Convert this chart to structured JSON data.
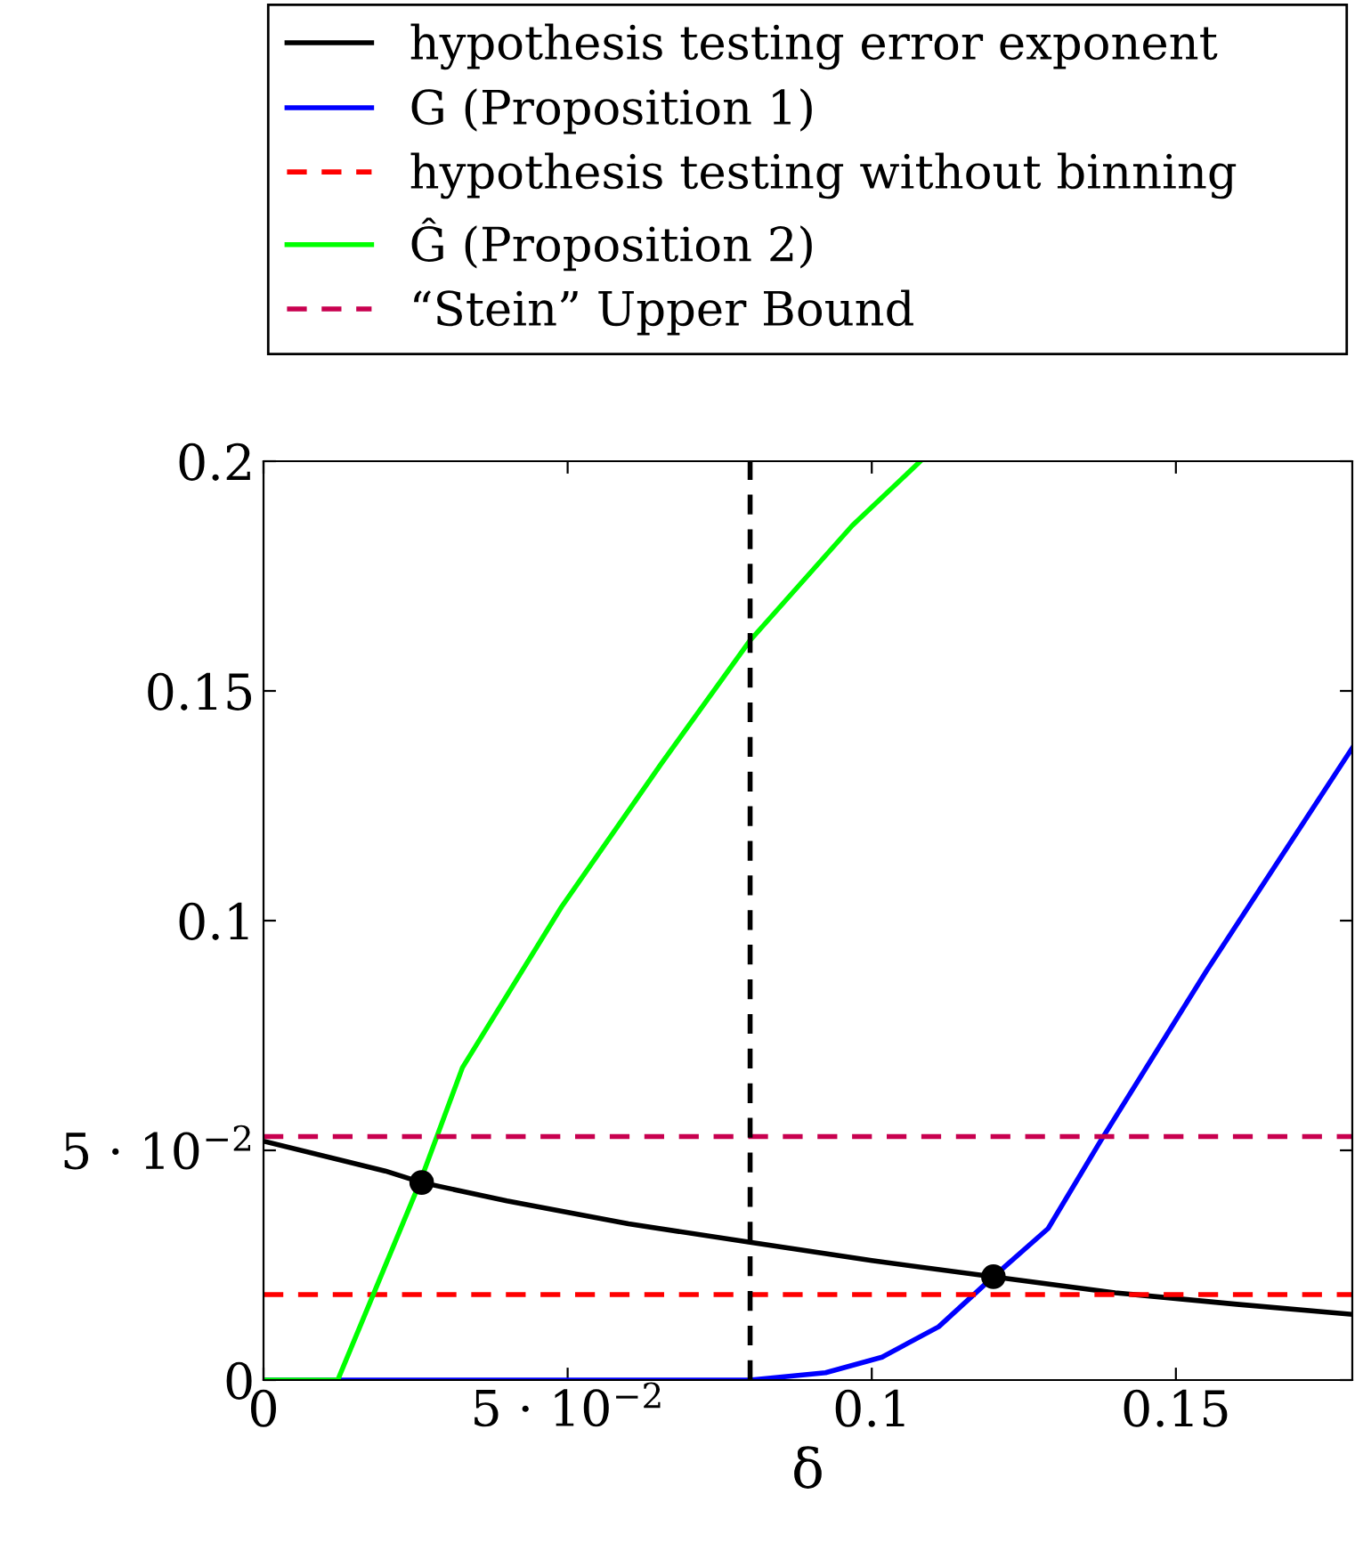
{
  "chart_data": {
    "type": "line",
    "xlabel": "δ",
    "xlim": [
      0,
      0.179
    ],
    "ylim": [
      0,
      0.2
    ],
    "xticks": [
      0,
      {
        "value": 0.05,
        "label": "5 · 10$^{−2}$"
      },
      0.1,
      0.15
    ],
    "yticks": [
      0,
      {
        "value": 0.05,
        "label": "5 · 10$^{−2}$"
      },
      0.1,
      0.15,
      0.2
    ],
    "grid": false,
    "legend": "top",
    "series": [
      {
        "name": "hypothesis testing error exponent",
        "color": "#000000",
        "line_style": "solid",
        "x": [
          0,
          0.02,
          0.026,
          0.04,
          0.06,
          0.08,
          0.1,
          0.12,
          0.14,
          0.16,
          0.179
        ],
        "values": [
          0.052,
          0.0455,
          0.043,
          0.039,
          0.034,
          0.03,
          0.026,
          0.0225,
          0.019,
          0.0165,
          0.0143
        ]
      },
      {
        "name": "G (Proposition 1)",
        "color": "#0000ff",
        "line_style": "solid",
        "x": [
          0,
          0.08,
          0.0924,
          0.1017,
          0.111,
          0.12,
          0.129,
          0.1376,
          0.155,
          0.179
        ],
        "values": [
          0,
          0,
          0.0016,
          0.005,
          0.0116,
          0.0225,
          0.033,
          0.052,
          0.089,
          0.1376
        ]
      },
      {
        "name": "hypothesis testing without binning",
        "color": "#ff0000",
        "line_style": "dashed",
        "x": [
          0,
          0.179
        ],
        "values": [
          0.0186,
          0.0186
        ]
      },
      {
        "name": "Ĝ (Proposition 2)",
        "color": "#00ff00",
        "line_style": "solid",
        "x": [
          0,
          0.0122,
          0.0257,
          0.0327,
          0.049,
          0.0653,
          0.08,
          0.0968,
          0.108
        ],
        "values": [
          0,
          0,
          0.043,
          0.068,
          0.103,
          0.134,
          0.161,
          0.186,
          0.2
        ]
      },
      {
        "name": "“Stein” Upper Bound",
        "color": "#c8004f",
        "line_style": "dashed",
        "x": [
          0,
          0.179
        ],
        "values": [
          0.053,
          0.053
        ]
      },
      {
        "type": "scatter",
        "color": "#000000",
        "marker": "circle",
        "x": [
          0.026,
          0.12
        ],
        "values": [
          0.043,
          0.0225
        ]
      }
    ],
    "ref_lines": [
      {
        "axis": "x",
        "value": 0.08,
        "color": "#000000",
        "line_style": "dashed"
      }
    ]
  }
}
